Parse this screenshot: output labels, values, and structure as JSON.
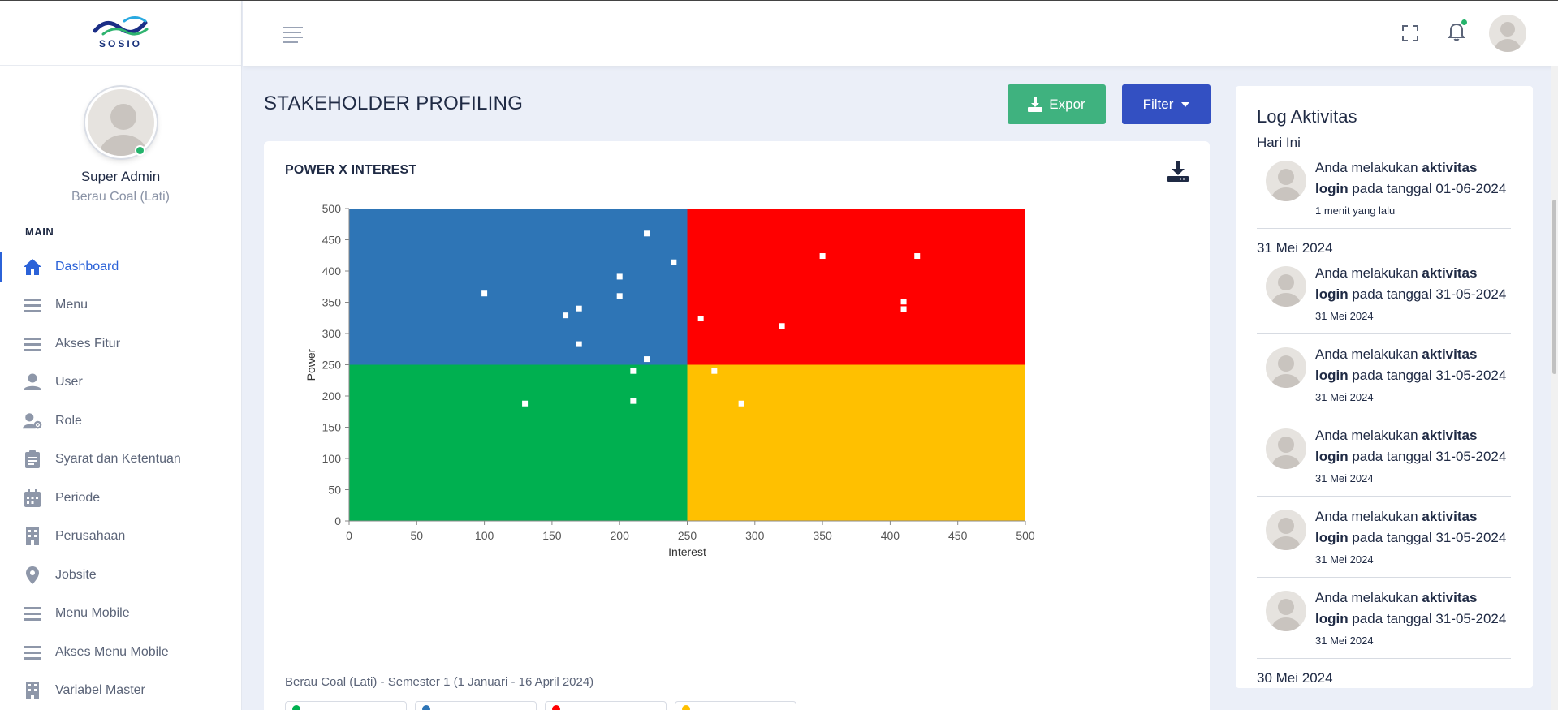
{
  "brand": {
    "logo_text": "SOSIO"
  },
  "profile": {
    "name": "Super Admin",
    "org": "Berau Coal (Lati)"
  },
  "sidebar": {
    "section": "MAIN",
    "items": [
      {
        "label": "Dashboard",
        "icon": "home-icon",
        "active": true
      },
      {
        "label": "Menu",
        "icon": "menu-lines-icon"
      },
      {
        "label": "Akses Fitur",
        "icon": "menu-lines-icon"
      },
      {
        "label": "User",
        "icon": "user-icon"
      },
      {
        "label": "Role",
        "icon": "user-gear-icon"
      },
      {
        "label": "Syarat dan Ketentuan",
        "icon": "clipboard-icon"
      },
      {
        "label": "Periode",
        "icon": "calendar-icon"
      },
      {
        "label": "Perusahaan",
        "icon": "building-icon"
      },
      {
        "label": "Jobsite",
        "icon": "map-pin-icon"
      },
      {
        "label": "Menu Mobile",
        "icon": "menu-lines-icon"
      },
      {
        "label": "Akses Menu Mobile",
        "icon": "menu-lines-icon"
      },
      {
        "label": "Variabel Master",
        "icon": "building-icon"
      }
    ]
  },
  "header": {
    "icons": [
      "hamburger-icon",
      "fullscreen-icon",
      "bell-icon",
      "avatar"
    ]
  },
  "page": {
    "title": "STAKEHOLDER PROFILING",
    "expor_label": "Expor",
    "filter_label": "Filter"
  },
  "card": {
    "title": "POWER X INTEREST",
    "caption": "Berau Coal (Lati) - Semester 1 (1 Januari - 16 April 2024)",
    "legend": [
      {
        "color": "#00b050"
      },
      {
        "color": "#2e75b6"
      },
      {
        "color": "#ff0000"
      },
      {
        "color": "#ffc000"
      }
    ]
  },
  "chart_data": {
    "type": "scatter",
    "xlabel": "Interest",
    "ylabel": "Power",
    "xlim": [
      0,
      500
    ],
    "ylim": [
      0,
      500
    ],
    "x_ticks": [
      0,
      50,
      100,
      150,
      200,
      250,
      300,
      350,
      400,
      450,
      500
    ],
    "y_ticks": [
      0,
      50,
      100,
      150,
      200,
      250,
      300,
      350,
      400,
      450,
      500
    ],
    "quadrant_split": {
      "x": 250,
      "y": 250
    },
    "quadrant_colors": {
      "low_interest_high_power": "#2e75b6",
      "high_interest_high_power": "#ff0000",
      "low_interest_low_power": "#00b050",
      "high_interest_low_power": "#ffc000"
    },
    "points": [
      {
        "x": 220,
        "y": 460
      },
      {
        "x": 240,
        "y": 414
      },
      {
        "x": 200,
        "y": 391
      },
      {
        "x": 100,
        "y": 364
      },
      {
        "x": 200,
        "y": 360
      },
      {
        "x": 170,
        "y": 340
      },
      {
        "x": 160,
        "y": 329
      },
      {
        "x": 170,
        "y": 283
      },
      {
        "x": 220,
        "y": 259
      },
      {
        "x": 210,
        "y": 240
      },
      {
        "x": 210,
        "y": 192
      },
      {
        "x": 130,
        "y": 188
      },
      {
        "x": 350,
        "y": 424
      },
      {
        "x": 420,
        "y": 424
      },
      {
        "x": 410,
        "y": 351
      },
      {
        "x": 410,
        "y": 339
      },
      {
        "x": 260,
        "y": 324
      },
      {
        "x": 320,
        "y": 312
      },
      {
        "x": 270,
        "y": 240
      },
      {
        "x": 290,
        "y": 188
      }
    ]
  },
  "log": {
    "title": "Log Aktivitas",
    "groups": [
      {
        "label": "Hari Ini",
        "entries": [
          {
            "pre": "Anda melakukan ",
            "bold": "aktivitas login",
            "post": " pada tanggal 01-06-2024",
            "time": "1 menit yang lalu"
          }
        ]
      },
      {
        "label": "31 Mei 2024",
        "entries": [
          {
            "pre": "Anda melakukan ",
            "bold": "aktivitas login",
            "post": " pada tanggal 31-05-2024",
            "time": "31 Mei 2024"
          },
          {
            "pre": "Anda melakukan ",
            "bold": "aktivitas login",
            "post": " pada tanggal 31-05-2024",
            "time": "31 Mei 2024"
          },
          {
            "pre": "Anda melakukan ",
            "bold": "aktivitas login",
            "post": " pada tanggal 31-05-2024",
            "time": "31 Mei 2024"
          },
          {
            "pre": "Anda melakukan ",
            "bold": "aktivitas login",
            "post": " pada tanggal 31-05-2024",
            "time": "31 Mei 2024"
          },
          {
            "pre": "Anda melakukan ",
            "bold": "aktivitas login",
            "post": " pada tanggal 31-05-2024",
            "time": "31 Mei 2024"
          }
        ]
      },
      {
        "label": "30 Mei 2024",
        "entries": []
      }
    ]
  }
}
